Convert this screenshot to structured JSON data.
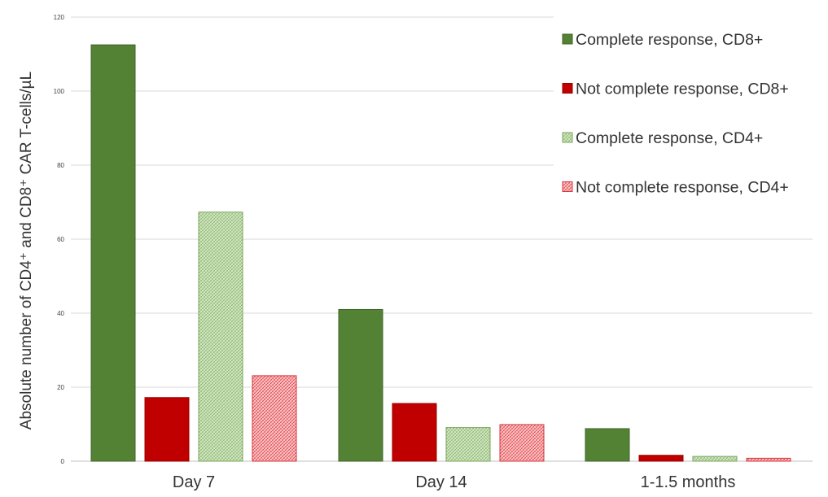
{
  "chart_data": {
    "type": "bar",
    "title": "",
    "xlabel": "",
    "ylabel": "Absolute number of CD4⁺ and CD8⁺ CAR T-cells/µL",
    "ylim": [
      0,
      120
    ],
    "yticks": [
      "0",
      "20",
      "40",
      "60",
      "80",
      "100",
      "120"
    ],
    "grid": true,
    "legend_position": "top-right",
    "categories": [
      "Day 7",
      "Day 14",
      "1-1.5 months"
    ],
    "series": [
      {
        "name": "Complete response, CD8+",
        "values": [
          112.5,
          41,
          8.8
        ],
        "color": "#548235",
        "pattern": "solid"
      },
      {
        "name": "Not complete response, CD8+",
        "values": [
          17.2,
          15.6,
          1.6
        ],
        "color": "#c00000",
        "pattern": "solid"
      },
      {
        "name": "Complete response, CD4+",
        "values": [
          67.3,
          9.1,
          1.3
        ],
        "color": "#a9d18e",
        "pattern": "hatched"
      },
      {
        "name": "Not complete response, CD4+",
        "values": [
          23.1,
          9.9,
          0.8
        ],
        "color": "#ff7c80",
        "pattern": "hatched"
      }
    ]
  }
}
